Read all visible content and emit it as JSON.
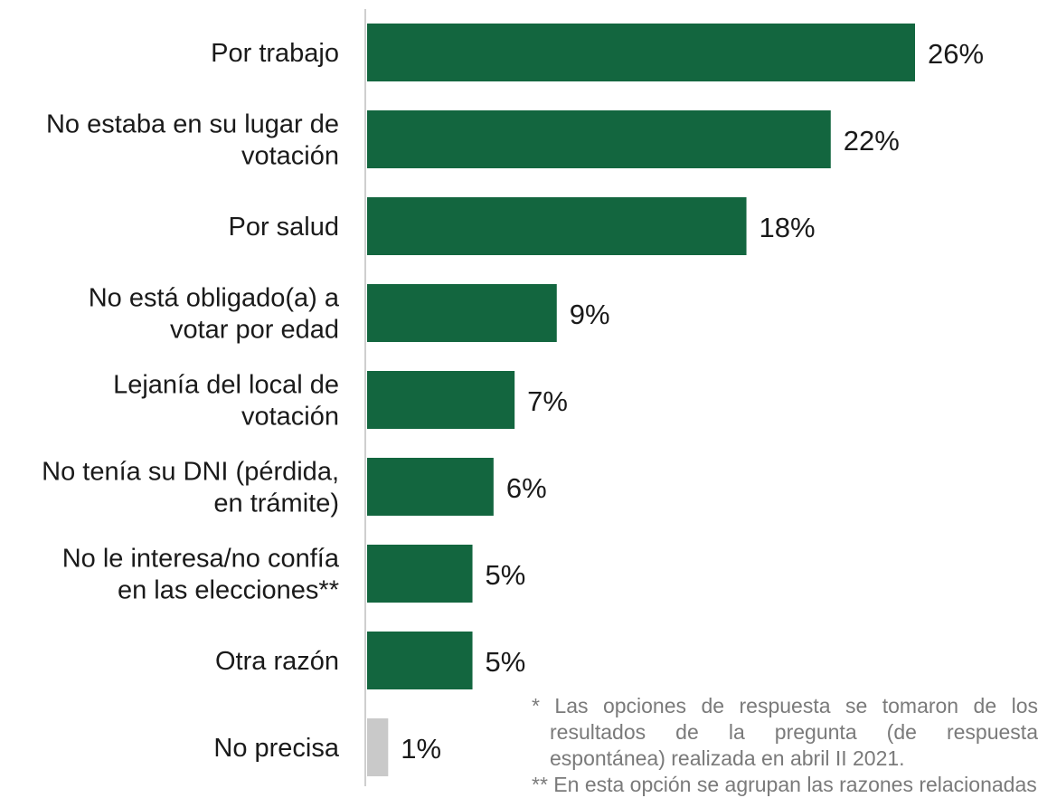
{
  "chart_data": {
    "type": "bar",
    "orientation": "horizontal",
    "categories": [
      [
        "Por trabajo"
      ],
      [
        "No estaba en su lugar de",
        "votación"
      ],
      [
        "Por salud"
      ],
      [
        "No está obligado(a) a",
        "votar por edad"
      ],
      [
        "Lejanía del local de",
        "votación"
      ],
      [
        "No tenía su DNI (pérdida,",
        "en trámite)"
      ],
      [
        "No le interesa/no confía",
        "en las elecciones**"
      ],
      [
        "Otra razón"
      ],
      [
        "No precisa"
      ]
    ],
    "values": [
      26,
      22,
      18,
      9,
      7,
      6,
      5,
      5,
      1
    ],
    "value_labels": [
      "26%",
      "22%",
      "18%",
      "9%",
      "7%",
      "6%",
      "5%",
      "5%",
      "1%"
    ],
    "colors": [
      "#13663f",
      "#13663f",
      "#13663f",
      "#13663f",
      "#13663f",
      "#13663f",
      "#13663f",
      "#13663f",
      "#c9c9c9"
    ],
    "axis_color": "#cfcfcf",
    "xlim": [
      0,
      26
    ],
    "grid": false,
    "legend": "none"
  },
  "footnotes": [
    "* Las opciones de respuesta se tomaron de los resultados de la pregunta (de respuesta espontánea) realizada en abril II 2021.",
    "** En esta opción se agrupan las razones relacionadas"
  ]
}
